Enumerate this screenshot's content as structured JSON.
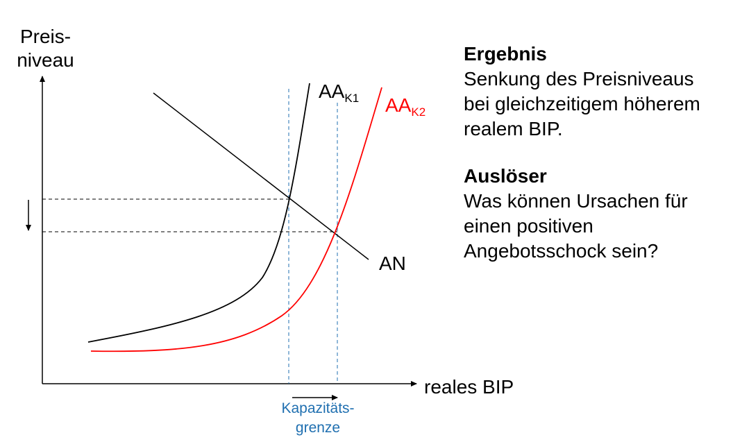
{
  "axes": {
    "y_label_line1": "Preis-",
    "y_label_line2": "niveau",
    "x_label": "reales BIP"
  },
  "curves": {
    "ak1": {
      "main": "AA",
      "sub": "K1",
      "color": "#000000"
    },
    "ak2": {
      "main": "AA",
      "sub": "K2",
      "color": "#ff0000"
    },
    "an": {
      "label": "AN",
      "color": "#000000"
    }
  },
  "capacity": {
    "line1": "Kapazitäts-",
    "line2": "grenze",
    "color": "#1f6fb0"
  },
  "text": {
    "result_heading": "Ergebnis",
    "result_lines": [
      "Senkung des Preisniveaus",
      "bei gleichzeitigem höherem",
      "realem BIP."
    ],
    "trigger_heading": "Auslöser",
    "trigger_lines": [
      "Was können Ursachen für",
      "einen positiven",
      "Angebotsschock sein?"
    ]
  }
}
